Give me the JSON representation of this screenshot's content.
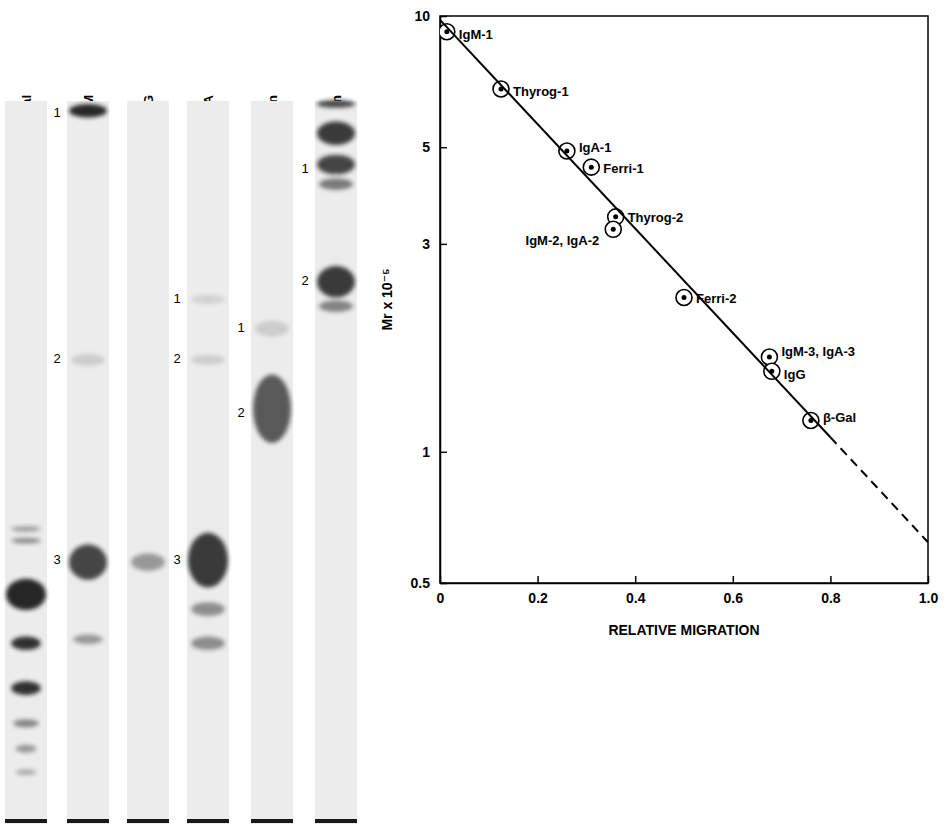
{
  "gel": {
    "lanes": [
      {
        "label": "β-Gal",
        "band_labels": []
      },
      {
        "label": "IgM",
        "band_labels": [
          "1",
          "2",
          "3"
        ]
      },
      {
        "label": "IgG",
        "band_labels": []
      },
      {
        "label": "IgA",
        "band_labels": [
          "1",
          "2",
          "3"
        ]
      },
      {
        "label": "Ferritin",
        "band_labels": [
          "1",
          "2"
        ]
      },
      {
        "label": "Thyroglobulin",
        "band_labels": [
          "1",
          "2"
        ]
      }
    ]
  },
  "chart_data": {
    "type": "scatter",
    "x_label": "RELATIVE MIGRATION",
    "y_label": "Mr x 10⁻⁵",
    "log": "y",
    "grid": false,
    "xlim": [
      0,
      1
    ],
    "ylim": [
      0.5,
      10
    ],
    "xticks": [
      0,
      0.2,
      0.4,
      0.6,
      0.8,
      {
        "value": 1,
        "label": "1.0"
      }
    ],
    "yticks": [
      0.5,
      1,
      3,
      5,
      10
    ],
    "series": [
      {
        "type": "scatter",
        "marker": "circle-dot",
        "color": "#000000",
        "x": [
          0.014,
          0.125,
          0.26,
          0.31,
          0.36,
          0.355,
          0.5,
          0.675,
          0.68,
          0.76
        ],
        "values": [
          9.2,
          6.8,
          4.9,
          4.5,
          3.46,
          3.24,
          2.26,
          1.65,
          1.53,
          1.18
        ],
        "labels": [
          "IgM-1",
          "Thyrog-1",
          "IgA-1",
          "Ferri-1",
          "Thyrog-2",
          "IgM-2, IgA-2",
          "Ferri-2",
          "IgM-3, IgA-3",
          "IgG",
          "β-Gal"
        ]
      },
      {
        "type": "line",
        "line_style": "solid",
        "color": "#000000",
        "x": [
          0,
          0.8
        ],
        "values": [
          9.8,
          1.08
        ]
      },
      {
        "type": "line",
        "line_style": "dashed",
        "color": "#000000",
        "x": [
          0.8,
          1
        ],
        "values": [
          1.08,
          0.62
        ]
      }
    ]
  }
}
